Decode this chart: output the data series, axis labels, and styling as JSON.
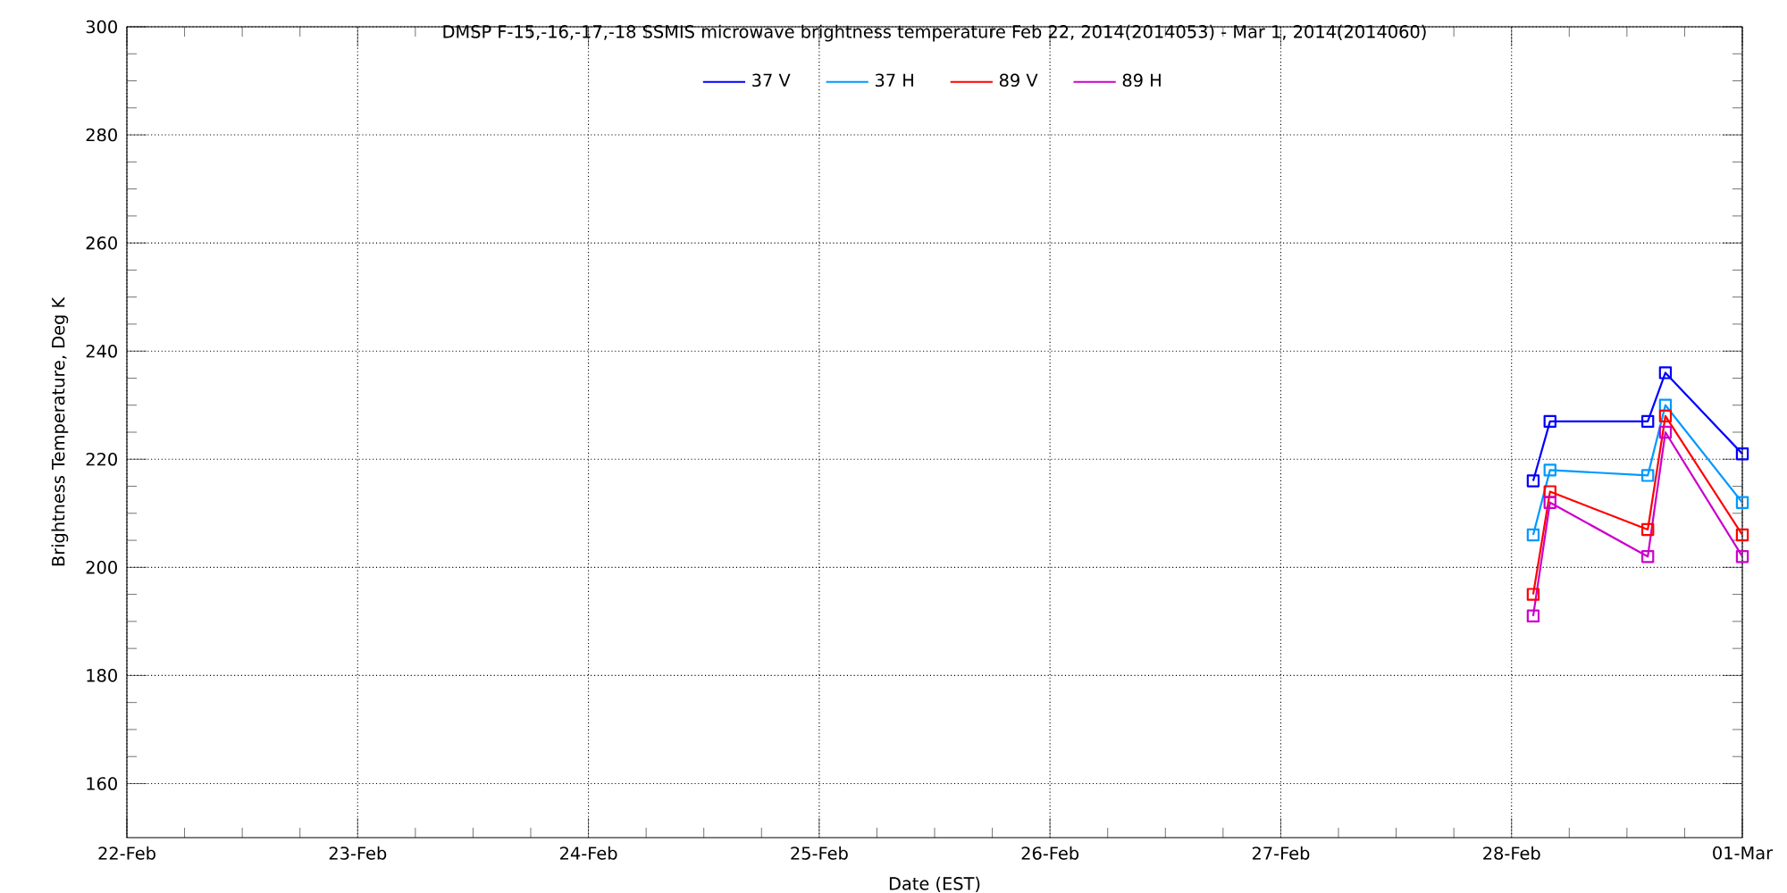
{
  "chart_data": {
    "type": "line",
    "title": "DMSP F-15,-16,-17,-18 SSMIS microwave brightness temperature Feb 22, 2014(2014053) - Mar  1, 2014(2014060)",
    "xlabel": "Date (EST)",
    "ylabel": "Brightness Temperature, Deg K",
    "x": [
      "2014-02-28T02:15",
      "2014-02-28T04:00",
      "2014-02-28T14:10",
      "2014-02-28T16:00",
      "2014-03-01T00:00"
    ],
    "series": [
      {
        "name": "37 V",
        "color": "#0000ff",
        "values": [
          216,
          227,
          227,
          236,
          221
        ]
      },
      {
        "name": "37 H",
        "color": "#0099ff",
        "values": [
          206,
          218,
          217,
          230,
          212
        ]
      },
      {
        "name": "89 V",
        "color": "#ff0000",
        "values": [
          195,
          214,
          207,
          228,
          206
        ]
      },
      {
        "name": "89 H",
        "color": "#cc00cc",
        "values": [
          191,
          212,
          202,
          225,
          202
        ]
      }
    ],
    "xlim": [
      "2014-02-22",
      "2014-03-01"
    ],
    "xticks": [
      {
        "value": "2014-02-22",
        "label": "22-Feb"
      },
      {
        "value": "2014-02-23",
        "label": "23-Feb"
      },
      {
        "value": "2014-02-24",
        "label": "24-Feb"
      },
      {
        "value": "2014-02-25",
        "label": "25-Feb"
      },
      {
        "value": "2014-02-26",
        "label": "26-Feb"
      },
      {
        "value": "2014-02-27",
        "label": "27-Feb"
      },
      {
        "value": "2014-02-28",
        "label": "28-Feb"
      },
      {
        "value": "2014-03-01",
        "label": "01-Mar"
      }
    ],
    "ylim": [
      150,
      300
    ],
    "yticks": [
      160,
      180,
      200,
      220,
      240,
      260,
      280,
      300
    ],
    "grid": true,
    "legend": "top",
    "marker": "square",
    "line_style": "solid"
  }
}
